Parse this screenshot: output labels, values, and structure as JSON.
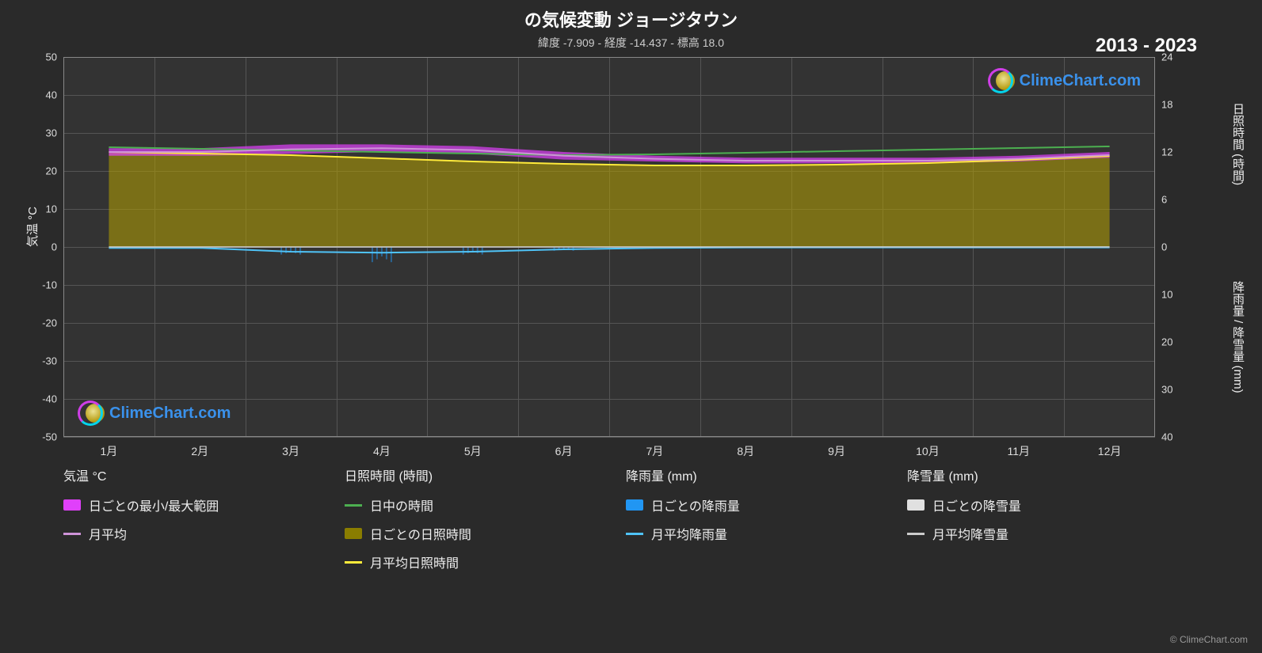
{
  "title": "の気候変動 ジョージタウン",
  "subtitle": "緯度 -7.909 - 経度 -14.437 - 標高 18.0",
  "year_range": "2013 - 2023",
  "attribution": "© ClimeChart.com",
  "watermark_text": "ClimeChart.com",
  "chart": {
    "background_color": "#333333",
    "grid_color": "#555555",
    "border_color": "#888888",
    "x_categories": [
      "1月",
      "2月",
      "3月",
      "4月",
      "5月",
      "6月",
      "7月",
      "8月",
      "9月",
      "10月",
      "11月",
      "12月"
    ],
    "left_axis": {
      "title": "気温 °C",
      "min": -50,
      "max": 50,
      "ticks": [
        50,
        40,
        30,
        20,
        10,
        0,
        -10,
        -20,
        -30,
        -40,
        -50
      ]
    },
    "right_axis_1": {
      "title": "日照時間 (時間)",
      "min": 0,
      "max": 24,
      "ticks": [
        24,
        18,
        12,
        6,
        0
      ],
      "zero_fraction_from_top": 0.5
    },
    "right_axis_2": {
      "title": "降雨量 / 降雪量 (mm)",
      "min": 0,
      "max": 40,
      "ticks": [
        0,
        10,
        20,
        30,
        40
      ],
      "tick_fractions_from_top": [
        0.5,
        0.625,
        0.75,
        0.875,
        1.0
      ]
    },
    "series": {
      "temp_range": {
        "type": "band",
        "axis": "left",
        "color": "#e040fb",
        "lower": [
          24,
          24,
          24.5,
          25,
          24.5,
          23,
          22.5,
          22,
          22,
          22,
          22.5,
          23.5
        ],
        "upper": [
          26,
          26,
          27,
          27,
          26.5,
          25,
          24,
          23.5,
          23.5,
          23.5,
          24,
          25
        ]
      },
      "temp_avg": {
        "type": "line",
        "axis": "left",
        "color": "#ce93d8",
        "width": 2,
        "values": [
          25,
          25,
          25.7,
          26,
          25.5,
          24,
          23.2,
          22.7,
          22.7,
          22.7,
          23.2,
          24.2
        ]
      },
      "daylength": {
        "type": "line",
        "axis": "right1",
        "color": "#4caf50",
        "width": 2,
        "values": [
          12.6,
          12.4,
          12.2,
          12,
          11.8,
          11.6,
          11.7,
          11.9,
          12.1,
          12.3,
          12.5,
          12.7
        ]
      },
      "sunshine_daily": {
        "type": "area",
        "axis": "right1",
        "color": "#b5a000",
        "opacity": 0.55,
        "upper_hours": [
          12,
          11.8,
          11.6,
          11.2,
          10.8,
          10.5,
          10.3,
          10.3,
          10.4,
          10.6,
          11,
          11.5
        ]
      },
      "sunshine_avg": {
        "type": "line",
        "axis": "right1",
        "color": "#ffeb3b",
        "width": 2,
        "values": [
          12,
          11.8,
          11.6,
          11.2,
          10.8,
          10.5,
          10.3,
          10.3,
          10.4,
          10.6,
          11,
          11.5
        ]
      },
      "rain_daily": {
        "type": "bars",
        "axis": "right2",
        "color": "#2196f3",
        "sample_heights_mm": [
          0,
          0,
          1,
          2,
          1,
          0.5,
          0,
          0,
          0,
          0,
          0,
          0
        ]
      },
      "rain_avg": {
        "type": "line",
        "axis": "right2",
        "color": "#4fc3f7",
        "width": 2,
        "values": [
          0.2,
          0.2,
          1,
          1.2,
          1,
          0.5,
          0.2,
          0.1,
          0.1,
          0.1,
          0.1,
          0.1
        ]
      },
      "snow": {
        "type": "line",
        "axis": "right2",
        "color": "#cccccc",
        "width": 2,
        "values": [
          0,
          0,
          0,
          0,
          0,
          0,
          0,
          0,
          0,
          0,
          0,
          0
        ]
      }
    }
  },
  "legend": {
    "columns": [
      {
        "heading": "気温 °C",
        "items": [
          {
            "swatch_type": "block",
            "color": "#e040fb",
            "label": "日ごとの最小/最大範囲"
          },
          {
            "swatch_type": "line",
            "color": "#ce93d8",
            "label": "月平均"
          }
        ]
      },
      {
        "heading": "日照時間 (時間)",
        "items": [
          {
            "swatch_type": "line",
            "color": "#4caf50",
            "label": "日中の時間"
          },
          {
            "swatch_type": "block",
            "color": "#8a7d00",
            "label": "日ごとの日照時間"
          },
          {
            "swatch_type": "line",
            "color": "#ffeb3b",
            "label": "月平均日照時間"
          }
        ]
      },
      {
        "heading": "降雨量 (mm)",
        "items": [
          {
            "swatch_type": "block",
            "color": "#2196f3",
            "label": "日ごとの降雨量"
          },
          {
            "swatch_type": "line",
            "color": "#4fc3f7",
            "label": "月平均降雨量"
          }
        ]
      },
      {
        "heading": "降雪量 (mm)",
        "items": [
          {
            "swatch_type": "block",
            "color": "#e0e0e0",
            "label": "日ごとの降雪量"
          },
          {
            "swatch_type": "line",
            "color": "#cccccc",
            "label": "月平均降雪量"
          }
        ]
      }
    ]
  }
}
